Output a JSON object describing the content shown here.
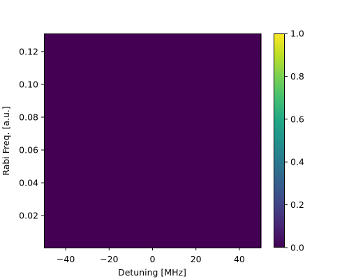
{
  "chart_data": {
    "type": "heatmap",
    "title": "",
    "xlabel": "Detuning [MHz]",
    "ylabel": "Rabi Freq. [a.u.]",
    "xlim": [
      -50,
      50
    ],
    "ylim": [
      0.0005,
      0.131
    ],
    "x_ticks": [
      -40,
      -20,
      0,
      20,
      40
    ],
    "x_tick_labels": [
      "−40",
      "−20",
      "0",
      "20",
      "40"
    ],
    "y_ticks": [
      0.02,
      0.04,
      0.06,
      0.08,
      0.1,
      0.12
    ],
    "y_tick_labels": [
      "0.02",
      "0.04",
      "0.06",
      "0.08",
      "0.10",
      "0.12"
    ],
    "colormap": "viridis",
    "clim": [
      0,
      1
    ],
    "colorbar_ticks": [
      0.0,
      0.2,
      0.4,
      0.6,
      0.8,
      1.0
    ],
    "colorbar_tick_labels": [
      "0.0",
      "0.2",
      "0.4",
      "0.6",
      "0.8",
      "1.0"
    ],
    "grid_resolution": [
      40,
      40
    ],
    "values_note_value": 0.0,
    "uniform_value": 0.0,
    "grid": false,
    "colorbar_position": "right"
  }
}
